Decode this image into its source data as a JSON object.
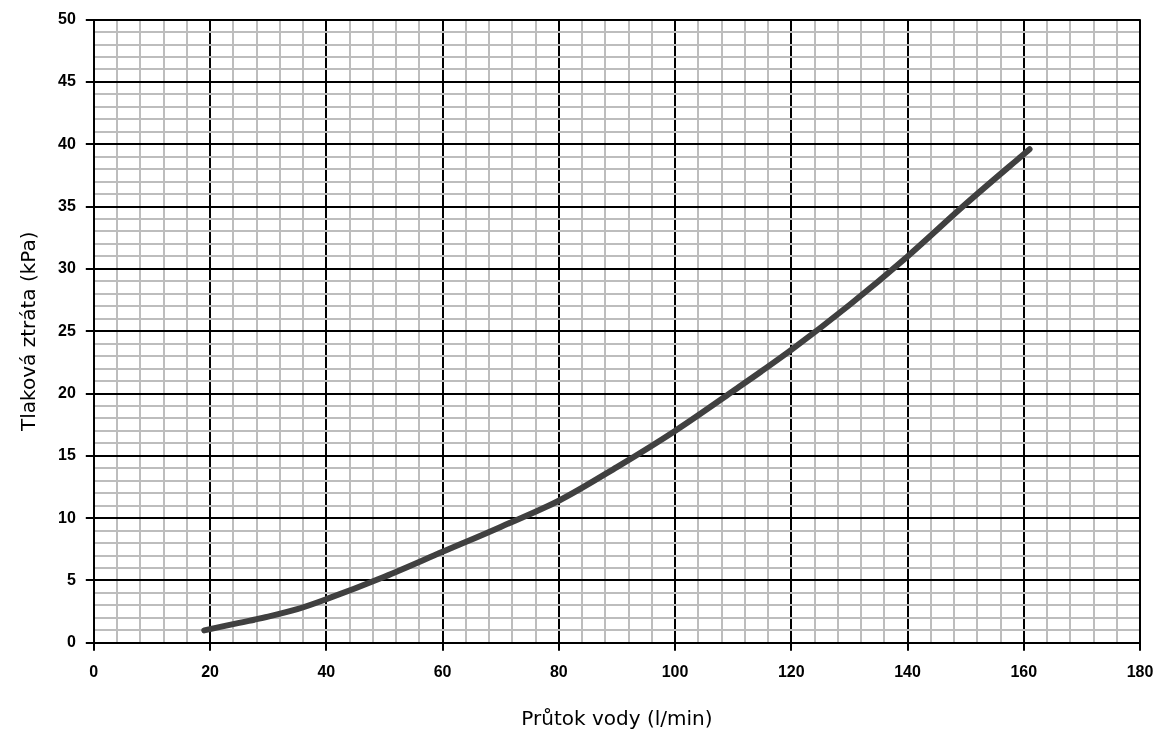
{
  "chart_data": {
    "type": "line",
    "xlabel": "Průtok vody (l/min)",
    "ylabel": "Tlaková ztráta (kPa)",
    "xlim": [
      0,
      180
    ],
    "ylim": [
      0,
      50
    ],
    "xticks": [
      0,
      {
        "value": 4,
        "label": null
      },
      {
        "value": 8,
        "label": null
      },
      {
        "value": 12,
        "label": null
      },
      {
        "value": 16,
        "label": null
      },
      20,
      {
        "value": 24,
        "label": null
      },
      {
        "value": 28,
        "label": null
      },
      {
        "value": 32,
        "label": null
      },
      {
        "value": 36,
        "label": null
      },
      40,
      {
        "value": 44,
        "label": null
      },
      {
        "value": 48,
        "label": null
      },
      {
        "value": 52,
        "label": null
      },
      {
        "value": 56,
        "label": null
      },
      60,
      {
        "value": 64,
        "label": null
      },
      {
        "value": 68,
        "label": null
      },
      {
        "value": 72,
        "label": null
      },
      {
        "value": 76,
        "label": null
      },
      80,
      {
        "value": 84,
        "label": null
      },
      {
        "value": 88,
        "label": null
      },
      {
        "value": 92,
        "label": null
      },
      {
        "value": 96,
        "label": null
      },
      100,
      {
        "value": 104,
        "label": null
      },
      {
        "value": 108,
        "label": null
      },
      {
        "value": 112,
        "label": null
      },
      {
        "value": 116,
        "label": null
      },
      120,
      {
        "value": 124,
        "label": null
      },
      {
        "value": 128,
        "label": null
      },
      {
        "value": 132,
        "label": null
      },
      {
        "value": 136,
        "label": null
      },
      140,
      {
        "value": 144,
        "label": null
      },
      {
        "value": 148,
        "label": null
      },
      {
        "value": 152,
        "label": null
      },
      {
        "value": 156,
        "label": null
      },
      160,
      {
        "value": 164,
        "label": null
      },
      {
        "value": 168,
        "label": null
      },
      {
        "value": 172,
        "label": null
      },
      {
        "value": 176,
        "label": null
      },
      180
    ],
    "yticks": [
      0,
      {
        "value": 1,
        "label": null
      },
      {
        "value": 2,
        "label": null
      },
      {
        "value": 3,
        "label": null
      },
      {
        "value": 4,
        "label": null
      },
      5,
      {
        "value": 6,
        "label": null
      },
      {
        "value": 7,
        "label": null
      },
      {
        "value": 8,
        "label": null
      },
      {
        "value": 9,
        "label": null
      },
      10,
      {
        "value": 11,
        "label": null
      },
      {
        "value": 12,
        "label": null
      },
      {
        "value": 13,
        "label": null
      },
      {
        "value": 14,
        "label": null
      },
      15,
      {
        "value": 16,
        "label": null
      },
      {
        "value": 17,
        "label": null
      },
      {
        "value": 18,
        "label": null
      },
      {
        "value": 19,
        "label": null
      },
      20,
      {
        "value": 21,
        "label": null
      },
      {
        "value": 22,
        "label": null
      },
      {
        "value": 23,
        "label": null
      },
      {
        "value": 24,
        "label": null
      },
      25,
      {
        "value": 26,
        "label": null
      },
      {
        "value": 27,
        "label": null
      },
      {
        "value": 28,
        "label": null
      },
      {
        "value": 29,
        "label": null
      },
      30,
      {
        "value": 31,
        "label": null
      },
      {
        "value": 32,
        "label": null
      },
      {
        "value": 33,
        "label": null
      },
      {
        "value": 34,
        "label": null
      },
      35,
      {
        "value": 36,
        "label": null
      },
      {
        "value": 37,
        "label": null
      },
      {
        "value": 38,
        "label": null
      },
      {
        "value": 39,
        "label": null
      },
      40,
      {
        "value": 41,
        "label": null
      },
      {
        "value": 42,
        "label": null
      },
      {
        "value": 43,
        "label": null
      },
      {
        "value": 44,
        "label": null
      },
      45,
      {
        "value": 46,
        "label": null
      },
      {
        "value": 47,
        "label": null
      },
      {
        "value": 48,
        "label": null
      },
      {
        "value": 49,
        "label": null
      },
      50
    ],
    "grid": true,
    "legend": false,
    "marker": "none",
    "line_style": "solid",
    "x": [
      19,
      25,
      30,
      35,
      40,
      50,
      60,
      70,
      80,
      90,
      100,
      110,
      120,
      130,
      140,
      150,
      161
    ],
    "series": [
      {
        "color": "#404040",
        "values": [
          1,
          1.6,
          2.1,
          2.7,
          3.5,
          5.3,
          7.3,
          9.3,
          11.4,
          14.1,
          17,
          20.2,
          23.5,
          27.1,
          31,
          35.2,
          39.6
        ]
      }
    ]
  }
}
